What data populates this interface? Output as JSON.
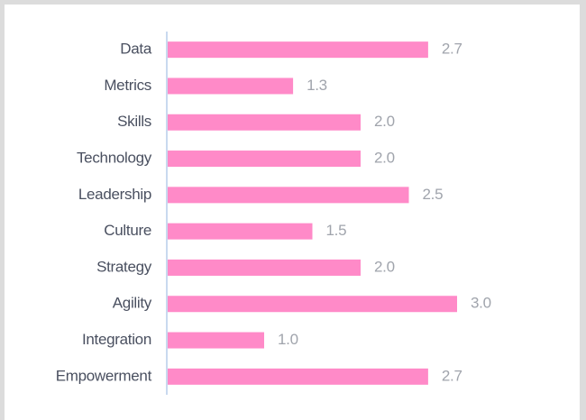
{
  "chart_data": {
    "type": "bar",
    "orientation": "horizontal",
    "categories": [
      "Data",
      "Metrics",
      "Skills",
      "Technology",
      "Leadership",
      "Culture",
      "Strategy",
      "Agility",
      "Integration",
      "Empowerment"
    ],
    "values": [
      2.7,
      1.3,
      2.0,
      2.0,
      2.5,
      1.5,
      2.0,
      3.0,
      1.0,
      2.7
    ],
    "value_labels": [
      "2.7",
      "1.3",
      "2.0",
      "2.0",
      "2.5",
      "1.5",
      "2.0",
      "3.0",
      "1.0",
      "2.7"
    ],
    "color": "#ff8ac8"
  }
}
